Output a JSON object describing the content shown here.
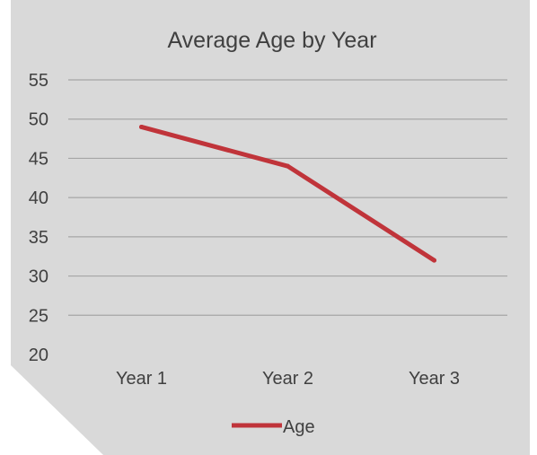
{
  "colors": {
    "background": "#d9d9d9",
    "gridline": "#a6a6a6",
    "series_line": "#c0343a",
    "text": "#404040"
  },
  "chart_data": {
    "type": "line",
    "title": "Average Age by Year",
    "categories": [
      "Year 1",
      "Year 2",
      "Year 3"
    ],
    "series": [
      {
        "name": "Age",
        "values": [
          49,
          44,
          32
        ]
      }
    ],
    "ylim": [
      20,
      55
    ],
    "yticks": [
      "20",
      "25",
      "30",
      "35",
      "40",
      "45",
      "50",
      "55"
    ],
    "grid": true,
    "legend_position": "bottom"
  }
}
